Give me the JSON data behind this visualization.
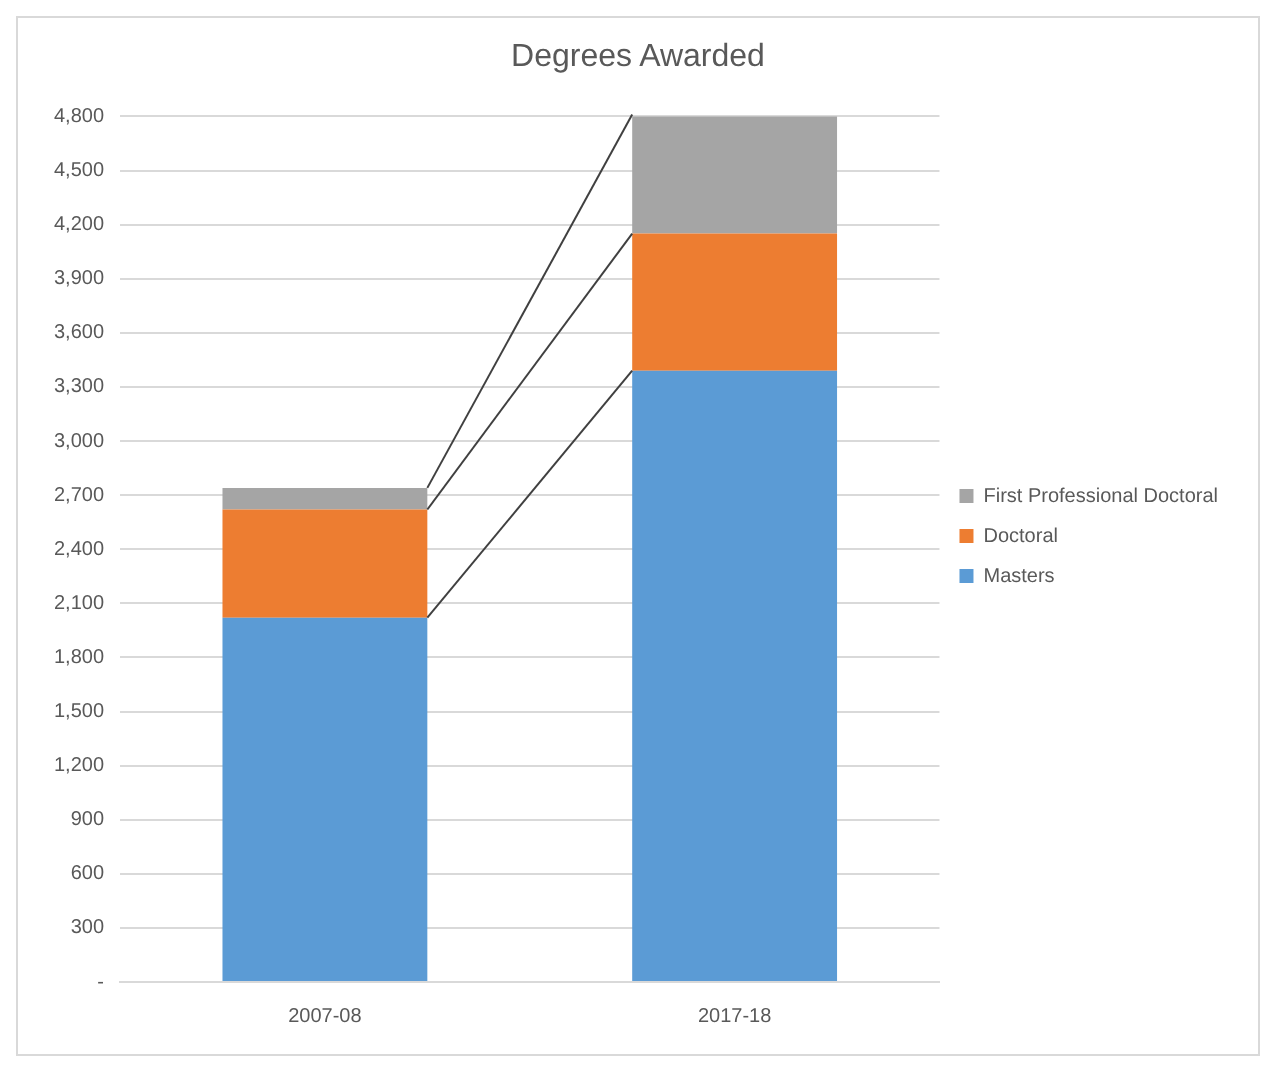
{
  "chart_data": {
    "type": "bar",
    "title": "Degrees Awarded",
    "stacked": true,
    "categories": [
      "2007-08",
      "2017-18"
    ],
    "series": [
      {
        "name": "Masters",
        "color": "#5b9bd5",
        "values": [
          2020,
          3390
        ]
      },
      {
        "name": "Doctoral",
        "color": "#ed7d31",
        "values": [
          600,
          760
        ]
      },
      {
        "name": "First Professional Doctoral",
        "color": "#a5a5a5",
        "values": [
          120,
          660
        ]
      }
    ],
    "ylim": [
      0,
      4800
    ],
    "yticks": [
      {
        "value": 0,
        "label": "-"
      },
      300,
      600,
      900,
      {
        "value": 1200,
        "label": "1,200"
      },
      {
        "value": 1500,
        "label": "1,500"
      },
      {
        "value": 1800,
        "label": "1,800"
      },
      {
        "value": 2100,
        "label": "2,100"
      },
      {
        "value": 2400,
        "label": "2,400"
      },
      {
        "value": 2700,
        "label": "2,700"
      },
      {
        "value": 3000,
        "label": "3,000"
      },
      {
        "value": 3300,
        "label": "3,300"
      },
      {
        "value": 3600,
        "label": "3,600"
      },
      {
        "value": 3900,
        "label": "3,900"
      },
      {
        "value": 4200,
        "label": "4,200"
      },
      {
        "value": 4500,
        "label": "4,500"
      },
      {
        "value": 4800,
        "label": "4,800"
      }
    ],
    "grid": "y",
    "legend": "right"
  }
}
